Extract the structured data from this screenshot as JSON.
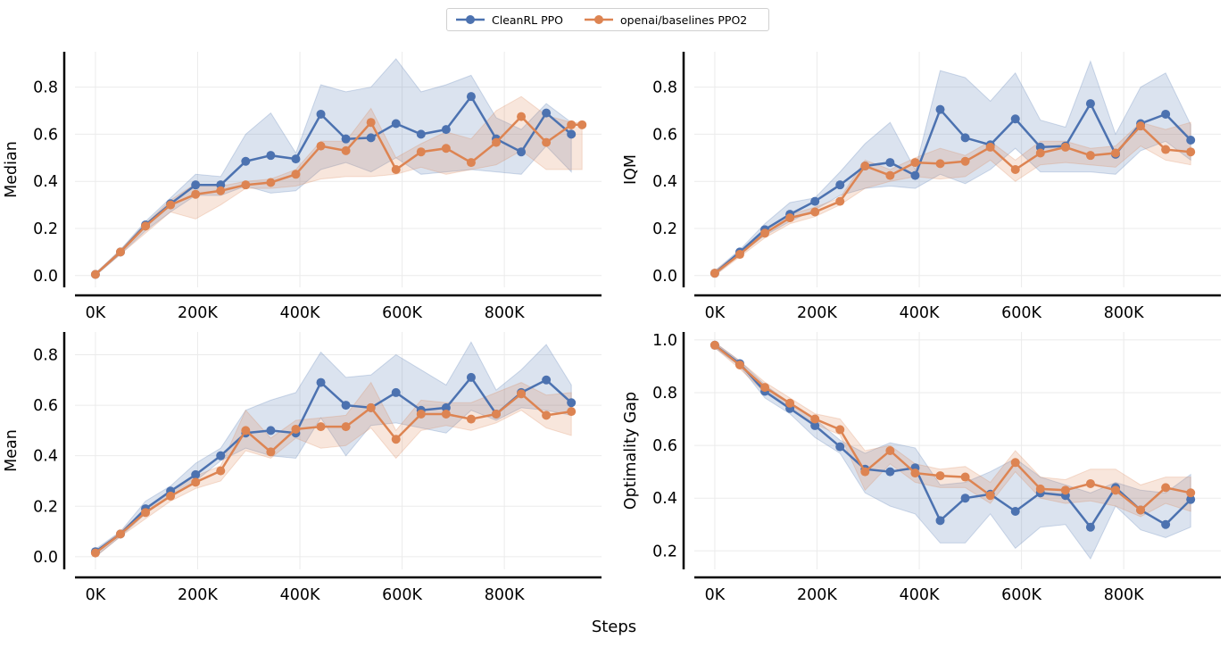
{
  "figure": {
    "xlabel": "Steps",
    "legend": [
      {
        "label": "CleanRL PPO",
        "color": "#4c72b0"
      },
      {
        "label": "openai/baselines PPO2",
        "color": "#dd8452"
      }
    ],
    "grid": true,
    "legend_position": "top-center"
  },
  "chart_data": [
    {
      "type": "line",
      "ylabel": "Median",
      "xlim": [
        -40000,
        990000
      ],
      "ylim": [
        -0.05,
        0.95
      ],
      "xticks": [
        0,
        200000,
        400000,
        600000,
        800000
      ],
      "xtick_labels": [
        "0K",
        "200K",
        "400K",
        "600K",
        "800K"
      ],
      "yticks": [
        0.0,
        0.2,
        0.4,
        0.6,
        0.8
      ],
      "ytick_labels": [
        "0.0",
        "0.2",
        "0.4",
        "0.6",
        "0.8"
      ],
      "series": [
        {
          "name": "CleanRL PPO",
          "color": "#4c72b0",
          "x": [
            0,
            49000,
            98000,
            147000,
            196000,
            245000,
            294000,
            343000,
            392000,
            441000,
            490000,
            539000,
            588000,
            637000,
            686000,
            735000,
            784000,
            833000,
            882000,
            931000
          ],
          "y": [
            0.005,
            0.1,
            0.215,
            0.305,
            0.385,
            0.385,
            0.485,
            0.51,
            0.495,
            0.685,
            0.58,
            0.585,
            0.645,
            0.6,
            0.62,
            0.76,
            0.58,
            0.525,
            0.69,
            0.6
          ],
          "lower": [
            0.0,
            0.09,
            0.19,
            0.27,
            0.34,
            0.34,
            0.38,
            0.35,
            0.36,
            0.45,
            0.48,
            0.44,
            0.5,
            0.43,
            0.44,
            0.45,
            0.44,
            0.43,
            0.55,
            0.44
          ],
          "upper": [
            0.01,
            0.11,
            0.23,
            0.33,
            0.43,
            0.42,
            0.6,
            0.69,
            0.52,
            0.81,
            0.78,
            0.8,
            0.92,
            0.78,
            0.81,
            0.85,
            0.67,
            0.62,
            0.73,
            0.65
          ]
        },
        {
          "name": "openai/baselines PPO2",
          "color": "#dd8452",
          "x": [
            0,
            49000,
            98000,
            147000,
            196000,
            245000,
            294000,
            343000,
            392000,
            441000,
            490000,
            539000,
            588000,
            637000,
            686000,
            735000,
            784000,
            833000,
            882000,
            931000,
            952000
          ],
          "y": [
            0.005,
            0.1,
            0.21,
            0.3,
            0.345,
            0.36,
            0.385,
            0.395,
            0.43,
            0.55,
            0.53,
            0.65,
            0.45,
            0.525,
            0.54,
            0.48,
            0.565,
            0.675,
            0.565,
            0.64,
            0.64
          ],
          "lower": [
            0.0,
            0.09,
            0.18,
            0.27,
            0.24,
            0.3,
            0.37,
            0.37,
            0.38,
            0.41,
            0.42,
            0.42,
            0.43,
            0.46,
            0.43,
            0.45,
            0.47,
            0.53,
            0.45,
            0.45,
            0.45
          ],
          "upper": [
            0.01,
            0.11,
            0.22,
            0.32,
            0.39,
            0.38,
            0.4,
            0.41,
            0.45,
            0.57,
            0.57,
            0.71,
            0.5,
            0.56,
            0.61,
            0.58,
            0.7,
            0.76,
            0.68,
            0.65,
            0.65
          ]
        }
      ]
    },
    {
      "type": "line",
      "ylabel": "IQM",
      "xlim": [
        -40000,
        990000
      ],
      "ylim": [
        -0.05,
        0.95
      ],
      "xticks": [
        0,
        200000,
        400000,
        600000,
        800000
      ],
      "xtick_labels": [
        "0K",
        "200K",
        "400K",
        "600K",
        "800K"
      ],
      "yticks": [
        0.0,
        0.2,
        0.4,
        0.6,
        0.8
      ],
      "ytick_labels": [
        "0.0",
        "0.2",
        "0.4",
        "0.6",
        "0.8"
      ],
      "series": [
        {
          "name": "CleanRL PPO",
          "color": "#4c72b0",
          "x": [
            0,
            49000,
            98000,
            147000,
            196000,
            245000,
            294000,
            343000,
            392000,
            441000,
            490000,
            539000,
            588000,
            637000,
            686000,
            735000,
            784000,
            833000,
            882000,
            931000
          ],
          "y": [
            0.01,
            0.1,
            0.195,
            0.26,
            0.315,
            0.385,
            0.465,
            0.48,
            0.425,
            0.705,
            0.585,
            0.555,
            0.665,
            0.545,
            0.55,
            0.73,
            0.515,
            0.645,
            0.685,
            0.575
          ],
          "lower": [
            0.0,
            0.09,
            0.17,
            0.23,
            0.28,
            0.34,
            0.37,
            0.38,
            0.37,
            0.43,
            0.39,
            0.45,
            0.54,
            0.44,
            0.44,
            0.44,
            0.43,
            0.53,
            0.57,
            0.49
          ],
          "upper": [
            0.02,
            0.11,
            0.22,
            0.31,
            0.33,
            0.44,
            0.56,
            0.65,
            0.45,
            0.87,
            0.84,
            0.74,
            0.86,
            0.66,
            0.63,
            0.91,
            0.6,
            0.8,
            0.86,
            0.64
          ]
        },
        {
          "name": "openai/baselines PPO2",
          "color": "#dd8452",
          "x": [
            0,
            49000,
            98000,
            147000,
            196000,
            245000,
            294000,
            343000,
            392000,
            441000,
            490000,
            539000,
            588000,
            637000,
            686000,
            735000,
            784000,
            833000,
            882000,
            931000
          ],
          "y": [
            0.01,
            0.09,
            0.18,
            0.245,
            0.27,
            0.315,
            0.465,
            0.425,
            0.48,
            0.475,
            0.485,
            0.545,
            0.45,
            0.52,
            0.545,
            0.51,
            0.52,
            0.635,
            0.535,
            0.525
          ],
          "lower": [
            0.0,
            0.08,
            0.16,
            0.22,
            0.25,
            0.3,
            0.37,
            0.4,
            0.42,
            0.41,
            0.42,
            0.49,
            0.4,
            0.47,
            0.48,
            0.47,
            0.46,
            0.55,
            0.49,
            0.47
          ],
          "upper": [
            0.02,
            0.1,
            0.19,
            0.26,
            0.29,
            0.33,
            0.49,
            0.45,
            0.5,
            0.54,
            0.51,
            0.57,
            0.49,
            0.57,
            0.57,
            0.54,
            0.55,
            0.65,
            0.62,
            0.65
          ]
        }
      ]
    },
    {
      "type": "line",
      "ylabel": "Mean",
      "xlim": [
        -40000,
        990000
      ],
      "ylim": [
        -0.05,
        0.89
      ],
      "xticks": [
        0,
        200000,
        400000,
        600000,
        800000
      ],
      "xtick_labels": [
        "0K",
        "200K",
        "400K",
        "600K",
        "800K"
      ],
      "yticks": [
        0.0,
        0.2,
        0.4,
        0.6,
        0.8
      ],
      "ytick_labels": [
        "0.0",
        "0.2",
        "0.4",
        "0.6",
        "0.8"
      ],
      "series": [
        {
          "name": "CleanRL PPO",
          "color": "#4c72b0",
          "x": [
            0,
            49000,
            98000,
            147000,
            196000,
            245000,
            294000,
            343000,
            392000,
            441000,
            490000,
            539000,
            588000,
            637000,
            686000,
            735000,
            784000,
            833000,
            882000,
            931000
          ],
          "y": [
            0.02,
            0.09,
            0.19,
            0.26,
            0.325,
            0.4,
            0.49,
            0.5,
            0.49,
            0.69,
            0.6,
            0.59,
            0.65,
            0.58,
            0.59,
            0.71,
            0.565,
            0.65,
            0.7,
            0.61
          ],
          "lower": [
            0.0,
            0.08,
            0.17,
            0.24,
            0.3,
            0.38,
            0.43,
            0.4,
            0.39,
            0.55,
            0.4,
            0.52,
            0.53,
            0.51,
            0.49,
            0.58,
            0.54,
            0.59,
            0.58,
            0.56
          ],
          "upper": [
            0.03,
            0.1,
            0.22,
            0.28,
            0.37,
            0.43,
            0.58,
            0.62,
            0.65,
            0.81,
            0.71,
            0.72,
            0.8,
            0.74,
            0.68,
            0.85,
            0.66,
            0.74,
            0.84,
            0.68
          ]
        },
        {
          "name": "openai/baselines PPO2",
          "color": "#dd8452",
          "x": [
            0,
            49000,
            98000,
            147000,
            196000,
            245000,
            294000,
            343000,
            392000,
            441000,
            490000,
            539000,
            588000,
            637000,
            686000,
            735000,
            784000,
            833000,
            882000,
            931000
          ],
          "y": [
            0.015,
            0.09,
            0.175,
            0.24,
            0.295,
            0.34,
            0.5,
            0.415,
            0.505,
            0.515,
            0.515,
            0.59,
            0.465,
            0.565,
            0.565,
            0.545,
            0.565,
            0.645,
            0.56,
            0.575
          ],
          "lower": [
            0.0,
            0.08,
            0.15,
            0.22,
            0.27,
            0.3,
            0.42,
            0.39,
            0.47,
            0.43,
            0.44,
            0.51,
            0.39,
            0.5,
            0.52,
            0.5,
            0.53,
            0.58,
            0.51,
            0.48
          ],
          "upper": [
            0.02,
            0.1,
            0.19,
            0.26,
            0.32,
            0.36,
            0.58,
            0.47,
            0.54,
            0.55,
            0.56,
            0.69,
            0.5,
            0.62,
            0.61,
            0.61,
            0.65,
            0.69,
            0.64,
            0.65
          ]
        }
      ]
    },
    {
      "type": "line",
      "ylabel": "Optimality Gap",
      "xlim": [
        -40000,
        990000
      ],
      "ylim": [
        0.13,
        1.03
      ],
      "xticks": [
        0,
        200000,
        400000,
        600000,
        800000
      ],
      "xtick_labels": [
        "0K",
        "200K",
        "400K",
        "600K",
        "800K"
      ],
      "yticks": [
        0.2,
        0.4,
        0.6,
        0.8,
        1.0
      ],
      "ytick_labels": [
        "0.2",
        "0.4",
        "0.6",
        "0.8",
        "1.0"
      ],
      "series": [
        {
          "name": "CleanRL PPO",
          "color": "#4c72b0",
          "x": [
            0,
            49000,
            98000,
            147000,
            196000,
            245000,
            294000,
            343000,
            392000,
            441000,
            490000,
            539000,
            588000,
            637000,
            686000,
            735000,
            784000,
            833000,
            882000,
            931000
          ],
          "y": [
            0.98,
            0.91,
            0.805,
            0.74,
            0.675,
            0.595,
            0.51,
            0.5,
            0.515,
            0.315,
            0.4,
            0.415,
            0.35,
            0.42,
            0.41,
            0.29,
            0.44,
            0.355,
            0.3,
            0.395
          ],
          "lower": [
            0.97,
            0.9,
            0.78,
            0.72,
            0.63,
            0.57,
            0.42,
            0.37,
            0.34,
            0.23,
            0.23,
            0.34,
            0.21,
            0.29,
            0.3,
            0.17,
            0.37,
            0.28,
            0.25,
            0.29
          ],
          "upper": [
            0.99,
            0.92,
            0.83,
            0.76,
            0.7,
            0.62,
            0.57,
            0.61,
            0.59,
            0.45,
            0.46,
            0.5,
            0.55,
            0.48,
            0.45,
            0.42,
            0.46,
            0.43,
            0.42,
            0.49
          ]
        },
        {
          "name": "openai/baselines PPO2",
          "color": "#dd8452",
          "x": [
            0,
            49000,
            98000,
            147000,
            196000,
            245000,
            294000,
            343000,
            392000,
            441000,
            490000,
            539000,
            588000,
            637000,
            686000,
            735000,
            784000,
            833000,
            882000,
            931000
          ],
          "y": [
            0.98,
            0.905,
            0.82,
            0.76,
            0.7,
            0.66,
            0.5,
            0.58,
            0.495,
            0.485,
            0.48,
            0.41,
            0.535,
            0.435,
            0.43,
            0.455,
            0.43,
            0.355,
            0.44,
            0.42
          ],
          "lower": [
            0.97,
            0.89,
            0.8,
            0.74,
            0.68,
            0.64,
            0.43,
            0.53,
            0.46,
            0.44,
            0.44,
            0.38,
            0.5,
            0.4,
            0.38,
            0.39,
            0.37,
            0.33,
            0.38,
            0.35
          ],
          "upper": [
            0.99,
            0.92,
            0.84,
            0.78,
            0.72,
            0.7,
            0.58,
            0.6,
            0.53,
            0.51,
            0.52,
            0.46,
            0.58,
            0.48,
            0.47,
            0.51,
            0.51,
            0.45,
            0.48,
            0.48
          ]
        }
      ]
    }
  ]
}
